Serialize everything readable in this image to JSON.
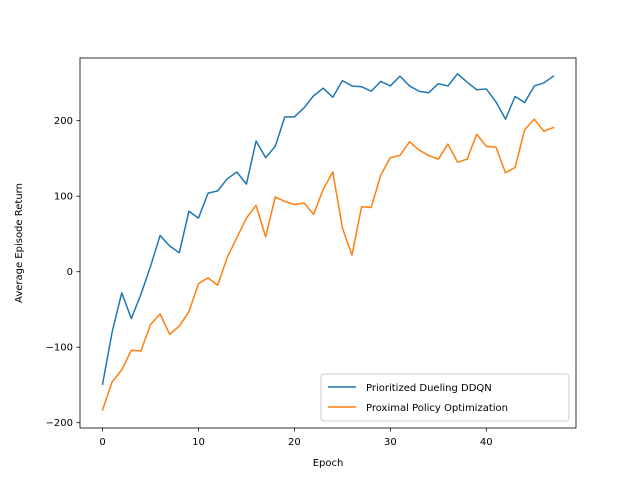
{
  "chart_data": {
    "type": "line",
    "title": "",
    "xlabel": "Epoch",
    "ylabel": "Average Episode Return",
    "xlim": [
      -2.35,
      49.35
    ],
    "ylim": [
      -207,
      283
    ],
    "xticks": [
      0,
      10,
      20,
      30,
      40
    ],
    "yticks": [
      -200,
      -100,
      0,
      100,
      200
    ],
    "xtick_labels": [
      "0",
      "10",
      "20",
      "30",
      "40"
    ],
    "ytick_labels": [
      "−200",
      "−100",
      "0",
      "100",
      "200"
    ],
    "grid": false,
    "legend_position": "lower-right",
    "x": [
      0,
      1,
      2,
      3,
      4,
      5,
      6,
      7,
      8,
      9,
      10,
      11,
      12,
      13,
      14,
      15,
      16,
      17,
      18,
      19,
      20,
      21,
      22,
      23,
      24,
      25,
      26,
      27,
      28,
      29,
      30,
      31,
      32,
      33,
      34,
      35,
      36,
      37,
      38,
      39,
      40,
      41,
      42,
      43,
      44,
      45,
      46,
      47
    ],
    "series": [
      {
        "name": "Prioritized Dueling DDQN",
        "color": "#1f77b4",
        "values": [
          -149,
          -80,
          -28,
          -62,
          -30,
          7,
          48,
          34,
          25,
          80,
          71,
          104,
          107,
          123,
          132,
          116,
          173,
          151,
          166,
          205,
          205,
          217,
          233,
          243,
          231,
          253,
          246,
          245,
          239,
          252,
          246,
          259,
          246,
          239,
          237,
          249,
          246,
          262,
          251,
          241,
          242,
          225,
          202,
          232,
          224,
          246,
          250,
          259
        ]
      },
      {
        "name": "Proximal Policy Optimization",
        "color": "#ff7f0e",
        "values": [
          -183,
          -146,
          -130,
          -104,
          -105,
          -70,
          -56,
          -83,
          -72,
          -53,
          -16,
          -8,
          -18,
          19,
          45,
          71,
          88,
          46,
          99,
          93,
          89,
          91,
          76,
          109,
          132,
          58,
          22,
          86,
          85,
          128,
          151,
          154,
          172,
          161,
          154,
          149,
          169,
          145,
          149,
          182,
          166,
          165,
          131,
          138,
          188,
          202,
          186,
          191
        ]
      }
    ]
  }
}
